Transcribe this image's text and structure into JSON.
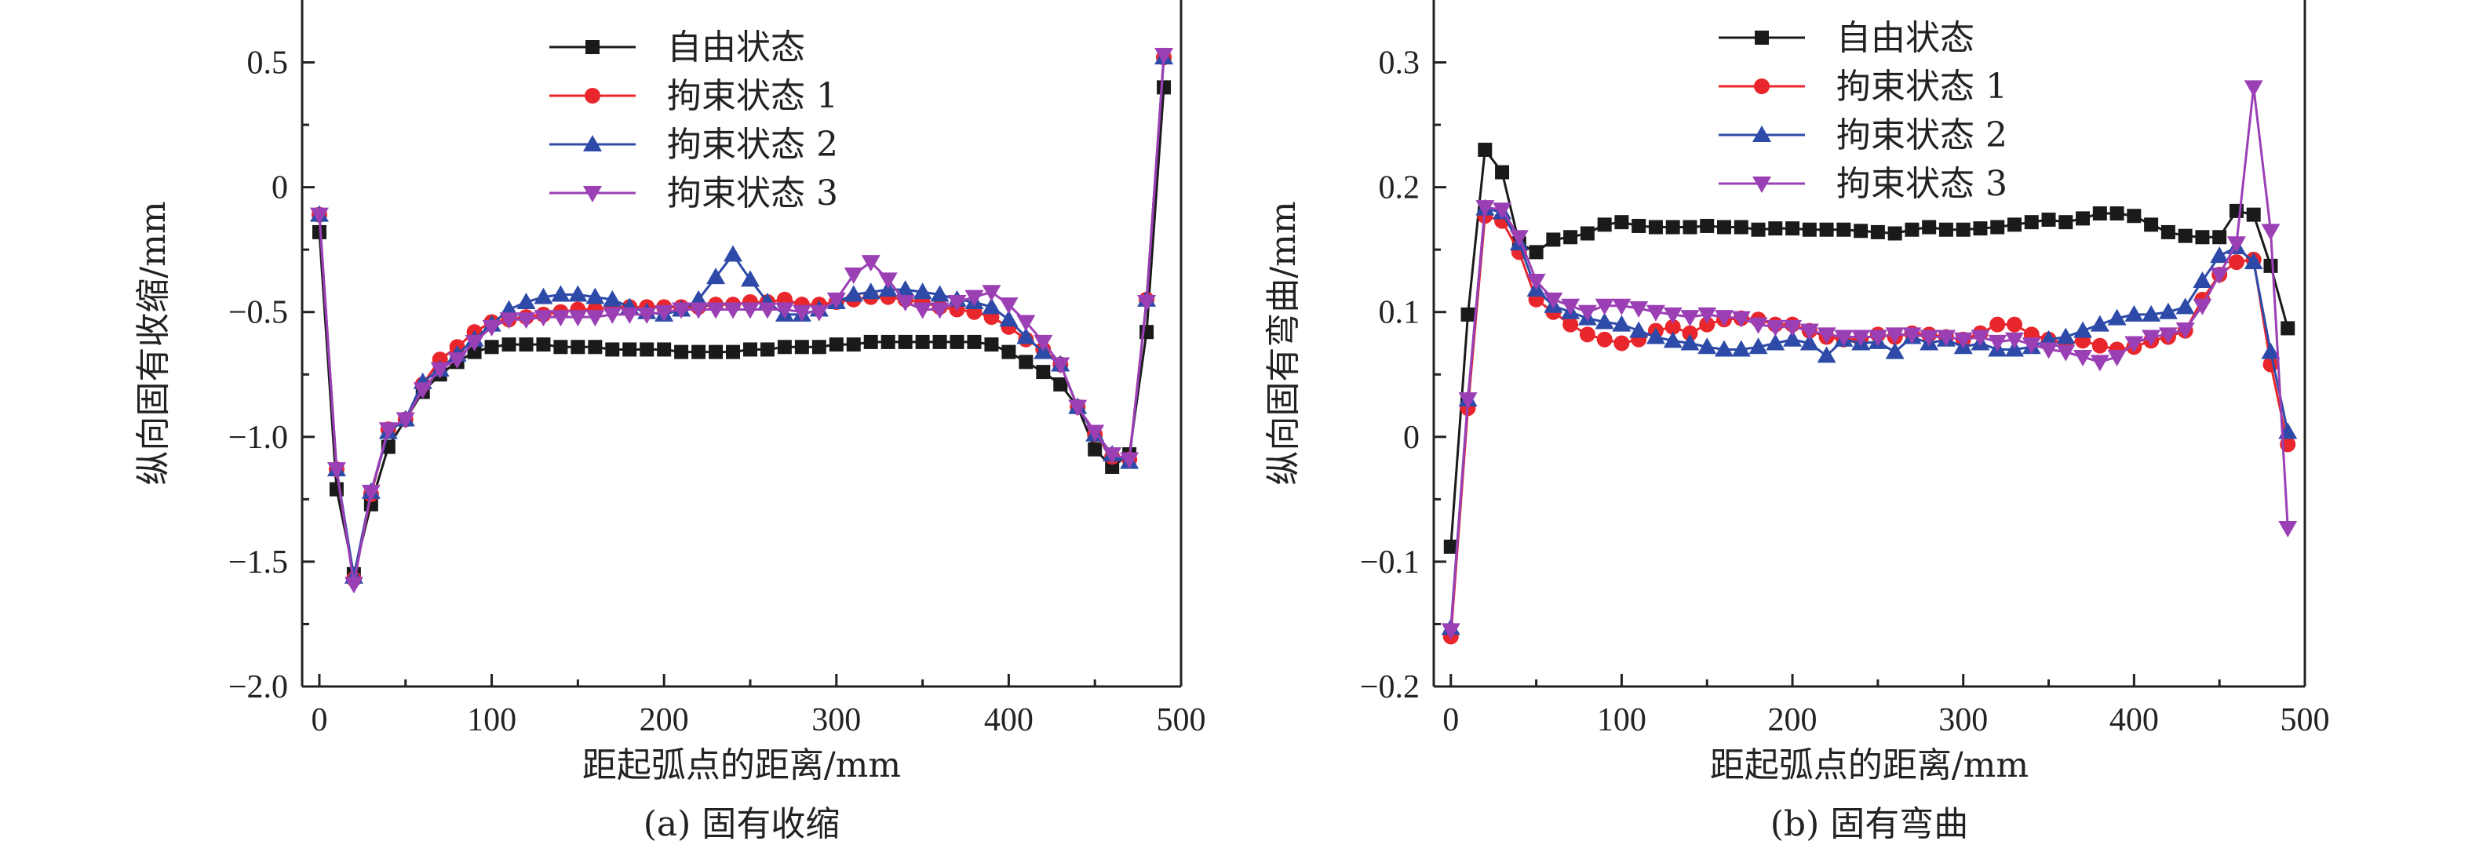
{
  "chart_data": [
    {
      "type": "line",
      "caption": "(a) 固有收缩",
      "xlabel": "距起弧点的距离/mm",
      "ylabel": "纵向固有收缩/mm",
      "xlim": [
        -10,
        500
      ],
      "ylim": [
        -2.0,
        0.75
      ],
      "xticks": [
        0,
        100,
        200,
        300,
        400,
        500
      ],
      "yticks": [
        -2.0,
        -1.5,
        -1.0,
        -0.5,
        0,
        0.5
      ],
      "xtick_labels": [
        "0",
        "100",
        "200",
        "300",
        "400",
        "500"
      ],
      "ytick_labels": [
        "−2.0",
        "−1.5",
        "−1.0",
        "−0.5",
        "0",
        "0.5"
      ],
      "legend_position": "top-center",
      "grid": false,
      "series": [
        {
          "name": "自由状态",
          "color": "#1a1a1a",
          "marker": "square",
          "x": [
            0,
            10,
            20,
            30,
            40,
            50,
            60,
            70,
            80,
            90,
            100,
            110,
            120,
            130,
            140,
            150,
            160,
            170,
            180,
            190,
            200,
            210,
            220,
            230,
            240,
            250,
            260,
            270,
            280,
            290,
            300,
            310,
            320,
            330,
            340,
            350,
            360,
            370,
            380,
            390,
            400,
            410,
            420,
            430,
            440,
            450,
            460,
            470,
            480,
            490
          ],
          "y": [
            -0.18,
            -1.21,
            -1.55,
            -1.27,
            -1.04,
            -0.93,
            -0.82,
            -0.75,
            -0.7,
            -0.66,
            -0.64,
            -0.63,
            -0.63,
            -0.63,
            -0.64,
            -0.64,
            -0.64,
            -0.65,
            -0.65,
            -0.65,
            -0.65,
            -0.66,
            -0.66,
            -0.66,
            -0.66,
            -0.65,
            -0.65,
            -0.64,
            -0.64,
            -0.64,
            -0.63,
            -0.63,
            -0.62,
            -0.62,
            -0.62,
            -0.62,
            -0.62,
            -0.62,
            -0.62,
            -0.63,
            -0.66,
            -0.7,
            -0.74,
            -0.79,
            -0.88,
            -1.05,
            -1.12,
            -1.07,
            -0.58,
            0.4
          ]
        },
        {
          "name": "拘束状态 1",
          "color": "#e8262b",
          "marker": "circle",
          "x": [
            0,
            10,
            20,
            30,
            40,
            50,
            60,
            70,
            80,
            90,
            100,
            110,
            120,
            130,
            140,
            150,
            160,
            170,
            180,
            190,
            200,
            210,
            220,
            230,
            240,
            250,
            260,
            270,
            280,
            290,
            300,
            310,
            320,
            330,
            340,
            350,
            360,
            370,
            380,
            390,
            400,
            410,
            420,
            430,
            440,
            450,
            460,
            470,
            480,
            490
          ],
          "y": [
            -0.11,
            -1.13,
            -1.57,
            -1.23,
            -0.97,
            -0.93,
            -0.79,
            -0.69,
            -0.64,
            -0.58,
            -0.54,
            -0.53,
            -0.52,
            -0.51,
            -0.5,
            -0.49,
            -0.49,
            -0.48,
            -0.48,
            -0.48,
            -0.48,
            -0.48,
            -0.48,
            -0.47,
            -0.47,
            -0.46,
            -0.46,
            -0.45,
            -0.47,
            -0.47,
            -0.46,
            -0.45,
            -0.44,
            -0.44,
            -0.45,
            -0.46,
            -0.48,
            -0.49,
            -0.5,
            -0.52,
            -0.56,
            -0.61,
            -0.65,
            -0.71,
            -0.88,
            -0.99,
            -1.08,
            -1.09,
            -0.45,
            0.52
          ]
        },
        {
          "name": "拘束状态 2",
          "color": "#2d4aa8",
          "marker": "triangle-up",
          "x": [
            0,
            10,
            20,
            30,
            40,
            50,
            60,
            70,
            80,
            90,
            100,
            110,
            120,
            130,
            140,
            150,
            160,
            170,
            180,
            190,
            200,
            210,
            220,
            230,
            240,
            250,
            260,
            270,
            280,
            290,
            300,
            310,
            320,
            330,
            340,
            350,
            360,
            370,
            380,
            390,
            400,
            410,
            420,
            430,
            440,
            450,
            460,
            470,
            480,
            490
          ],
          "y": [
            -0.11,
            -1.13,
            -1.56,
            -1.22,
            -0.98,
            -0.93,
            -0.78,
            -0.73,
            -0.67,
            -0.61,
            -0.55,
            -0.49,
            -0.46,
            -0.44,
            -0.43,
            -0.43,
            -0.44,
            -0.45,
            -0.48,
            -0.5,
            -0.51,
            -0.49,
            -0.45,
            -0.36,
            -0.27,
            -0.37,
            -0.46,
            -0.51,
            -0.51,
            -0.49,
            -0.46,
            -0.43,
            -0.42,
            -0.41,
            -0.41,
            -0.42,
            -0.43,
            -0.45,
            -0.46,
            -0.48,
            -0.53,
            -0.6,
            -0.66,
            -0.71,
            -0.88,
            -0.99,
            -1.07,
            -1.1,
            -0.45,
            0.52
          ]
        },
        {
          "name": "拘束状态 3",
          "color": "#9b3fb5",
          "marker": "triangle-down",
          "x": [
            0,
            10,
            20,
            30,
            40,
            50,
            60,
            70,
            80,
            90,
            100,
            110,
            120,
            130,
            140,
            150,
            160,
            170,
            180,
            190,
            200,
            210,
            220,
            230,
            240,
            250,
            260,
            270,
            280,
            290,
            300,
            310,
            320,
            330,
            340,
            350,
            360,
            370,
            380,
            390,
            400,
            410,
            420,
            430,
            440,
            450,
            460,
            470,
            480,
            490
          ],
          "y": [
            -0.11,
            -1.13,
            -1.59,
            -1.22,
            -0.97,
            -0.93,
            -0.81,
            -0.73,
            -0.69,
            -0.62,
            -0.56,
            -0.53,
            -0.53,
            -0.52,
            -0.52,
            -0.52,
            -0.52,
            -0.51,
            -0.51,
            -0.51,
            -0.5,
            -0.49,
            -0.49,
            -0.49,
            -0.49,
            -0.49,
            -0.49,
            -0.49,
            -0.5,
            -0.5,
            -0.45,
            -0.35,
            -0.3,
            -0.37,
            -0.46,
            -0.49,
            -0.49,
            -0.46,
            -0.44,
            -0.42,
            -0.47,
            -0.54,
            -0.62,
            -0.71,
            -0.88,
            -0.98,
            -1.07,
            -1.09,
            -0.46,
            0.53
          ]
        }
      ]
    },
    {
      "type": "line",
      "caption": "(b) 固有弯曲",
      "xlabel": "距起弧点的距离/mm",
      "ylabel": "纵向固有弯曲/mm",
      "xlim": [
        -10,
        500
      ],
      "ylim": [
        -0.2,
        0.35
      ],
      "xticks": [
        0,
        100,
        200,
        300,
        400,
        500
      ],
      "yticks": [
        -0.2,
        -0.1,
        0,
        0.1,
        0.2,
        0.3
      ],
      "xtick_labels": [
        "0",
        "100",
        "200",
        "300",
        "400",
        "500"
      ],
      "ytick_labels": [
        "−0.2",
        "−0.1",
        "0",
        "0.1",
        "0.2",
        "0.3"
      ],
      "legend_position": "top-center",
      "grid": false,
      "series": [
        {
          "name": "自由状态",
          "color": "#1a1a1a",
          "marker": "square",
          "x": [
            0,
            10,
            20,
            30,
            40,
            50,
            60,
            70,
            80,
            90,
            100,
            110,
            120,
            130,
            140,
            150,
            160,
            170,
            180,
            190,
            200,
            210,
            220,
            230,
            240,
            250,
            260,
            270,
            280,
            290,
            300,
            310,
            320,
            330,
            340,
            350,
            360,
            370,
            380,
            390,
            400,
            410,
            420,
            430,
            440,
            450,
            460,
            470,
            480,
            490
          ],
          "y": [
            -0.088,
            0.098,
            0.23,
            0.212,
            0.155,
            0.148,
            0.158,
            0.16,
            0.163,
            0.17,
            0.172,
            0.169,
            0.168,
            0.168,
            0.168,
            0.169,
            0.168,
            0.168,
            0.166,
            0.167,
            0.167,
            0.166,
            0.166,
            0.166,
            0.165,
            0.164,
            0.163,
            0.166,
            0.168,
            0.166,
            0.166,
            0.167,
            0.168,
            0.17,
            0.172,
            0.174,
            0.172,
            0.175,
            0.179,
            0.179,
            0.177,
            0.17,
            0.164,
            0.161,
            0.16,
            0.16,
            0.181,
            0.178,
            0.137,
            0.087
          ]
        },
        {
          "name": "拘束状态 1",
          "color": "#e8262b",
          "marker": "circle",
          "x": [
            0,
            10,
            20,
            30,
            40,
            50,
            60,
            70,
            80,
            90,
            100,
            110,
            120,
            130,
            140,
            150,
            160,
            170,
            180,
            190,
            200,
            210,
            220,
            230,
            240,
            250,
            260,
            270,
            280,
            290,
            300,
            310,
            320,
            330,
            340,
            350,
            360,
            370,
            380,
            390,
            400,
            410,
            420,
            430,
            440,
            450,
            460,
            470,
            480,
            490
          ],
          "y": [
            -0.16,
            0.023,
            0.177,
            0.173,
            0.148,
            0.11,
            0.1,
            0.09,
            0.082,
            0.078,
            0.075,
            0.078,
            0.085,
            0.088,
            0.083,
            0.09,
            0.094,
            0.095,
            0.094,
            0.09,
            0.09,
            0.085,
            0.08,
            0.078,
            0.078,
            0.082,
            0.08,
            0.083,
            0.082,
            0.08,
            0.078,
            0.083,
            0.09,
            0.09,
            0.082,
            0.078,
            0.075,
            0.077,
            0.073,
            0.07,
            0.072,
            0.077,
            0.08,
            0.085,
            0.11,
            0.13,
            0.14,
            0.142,
            0.058,
            -0.006
          ]
        },
        {
          "name": "拘束状态 2",
          "color": "#2d4aa8",
          "marker": "triangle-up",
          "x": [
            0,
            10,
            20,
            30,
            40,
            50,
            60,
            70,
            80,
            90,
            100,
            110,
            120,
            130,
            140,
            150,
            160,
            170,
            180,
            190,
            200,
            210,
            220,
            230,
            240,
            250,
            260,
            270,
            280,
            290,
            300,
            310,
            320,
            330,
            340,
            350,
            360,
            370,
            380,
            390,
            400,
            410,
            420,
            430,
            440,
            450,
            460,
            470,
            480,
            490
          ],
          "y": [
            -0.153,
            0.03,
            0.183,
            0.18,
            0.155,
            0.118,
            0.105,
            0.1,
            0.095,
            0.092,
            0.09,
            0.085,
            0.08,
            0.077,
            0.075,
            0.072,
            0.07,
            0.07,
            0.072,
            0.075,
            0.078,
            0.075,
            0.065,
            0.078,
            0.075,
            0.076,
            0.068,
            0.08,
            0.075,
            0.078,
            0.072,
            0.075,
            0.07,
            0.07,
            0.072,
            0.078,
            0.08,
            0.085,
            0.09,
            0.095,
            0.098,
            0.098,
            0.1,
            0.104,
            0.125,
            0.145,
            0.152,
            0.14,
            0.068,
            0.004
          ]
        },
        {
          "name": "拘束状态 3",
          "color": "#9b3fb5",
          "marker": "triangle-down",
          "x": [
            0,
            10,
            20,
            30,
            40,
            50,
            60,
            70,
            80,
            90,
            100,
            110,
            120,
            130,
            140,
            150,
            160,
            170,
            180,
            190,
            200,
            210,
            220,
            230,
            240,
            250,
            260,
            270,
            280,
            290,
            300,
            310,
            320,
            330,
            340,
            350,
            360,
            370,
            380,
            390,
            400,
            410,
            420,
            430,
            440,
            450,
            460,
            470,
            480,
            490
          ],
          "y": [
            -0.155,
            0.03,
            0.184,
            0.182,
            0.16,
            0.125,
            0.11,
            0.105,
            0.1,
            0.105,
            0.105,
            0.103,
            0.1,
            0.098,
            0.096,
            0.098,
            0.096,
            0.095,
            0.09,
            0.088,
            0.088,
            0.085,
            0.082,
            0.08,
            0.08,
            0.08,
            0.082,
            0.082,
            0.08,
            0.08,
            0.078,
            0.08,
            0.076,
            0.078,
            0.074,
            0.07,
            0.068,
            0.064,
            0.06,
            0.064,
            0.075,
            0.08,
            0.082,
            0.086,
            0.105,
            0.13,
            0.155,
            0.28,
            0.165,
            -0.073
          ]
        }
      ]
    }
  ]
}
